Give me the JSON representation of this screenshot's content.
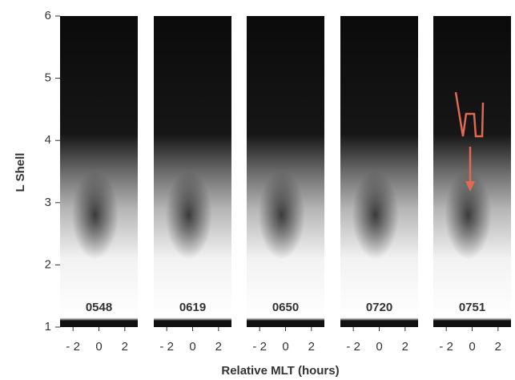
{
  "chart_data": {
    "type": "image",
    "ylabel": "L Shell",
    "xlabel": "Relative MLT (hours)",
    "panels": [
      "0548",
      "0619",
      "0650",
      "0720",
      "0751"
    ],
    "ylim": [
      1,
      6
    ],
    "yticks": [
      1,
      2,
      3,
      4,
      5,
      6
    ],
    "xlim": [
      -3,
      3
    ],
    "xticks": [
      {
        "value": -2,
        "label": "- 2"
      },
      0,
      2
    ],
    "grid": false
  }
}
